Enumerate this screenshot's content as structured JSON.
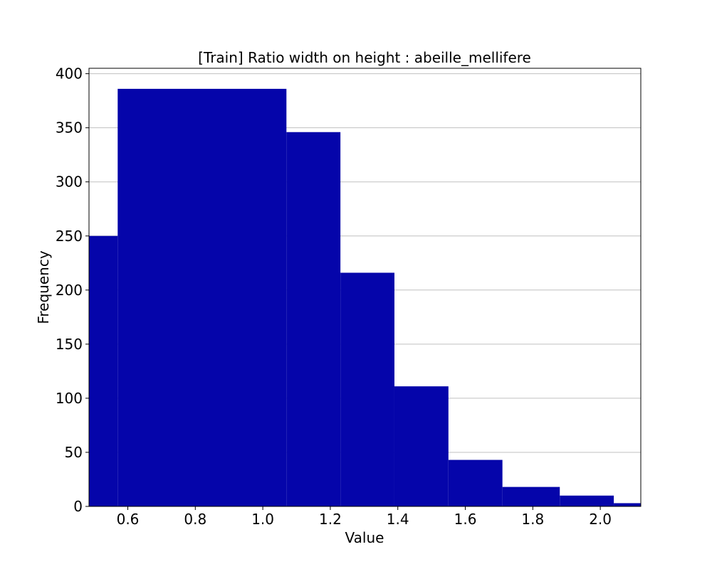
{
  "chart_data": {
    "type": "bar",
    "title": "[Train] Ratio width on height : abeille_mellifere",
    "xlabel": "Value",
    "ylabel": "Frequency",
    "xlim": [
      0.485,
      2.12
    ],
    "ylim": [
      0,
      405
    ],
    "xticks": [
      0.6,
      0.8,
      1.0,
      1.2,
      1.4,
      1.6,
      1.8,
      2.0
    ],
    "xtick_labels": [
      "0.6",
      "0.8",
      "1.0",
      "1.2",
      "1.4",
      "1.6",
      "1.8",
      "2.0"
    ],
    "yticks": [
      0,
      50,
      100,
      150,
      200,
      250,
      300,
      350,
      400
    ],
    "ytick_labels": [
      "0",
      "50",
      "100",
      "150",
      "200",
      "250",
      "300",
      "350",
      "400"
    ],
    "grid": "y",
    "legend": "none",
    "color": "#0505aa",
    "grid_color": "#c0c0c0",
    "bins": [
      {
        "x0": 0.41,
        "x1": 0.57,
        "value": 250
      },
      {
        "x0": 0.57,
        "x1": 1.07,
        "value": 386
      },
      {
        "x0": 1.07,
        "x1": 1.23,
        "value": 346
      },
      {
        "x0": 1.23,
        "x1": 1.39,
        "value": 216
      },
      {
        "x0": 1.39,
        "x1": 1.55,
        "value": 111
      },
      {
        "x0": 1.55,
        "x1": 1.71,
        "value": 43
      },
      {
        "x0": 1.71,
        "x1": 1.88,
        "value": 18
      },
      {
        "x0": 1.88,
        "x1": 2.04,
        "value": 10
      },
      {
        "x0": 2.04,
        "x1": 2.2,
        "value": 3
      }
    ]
  }
}
